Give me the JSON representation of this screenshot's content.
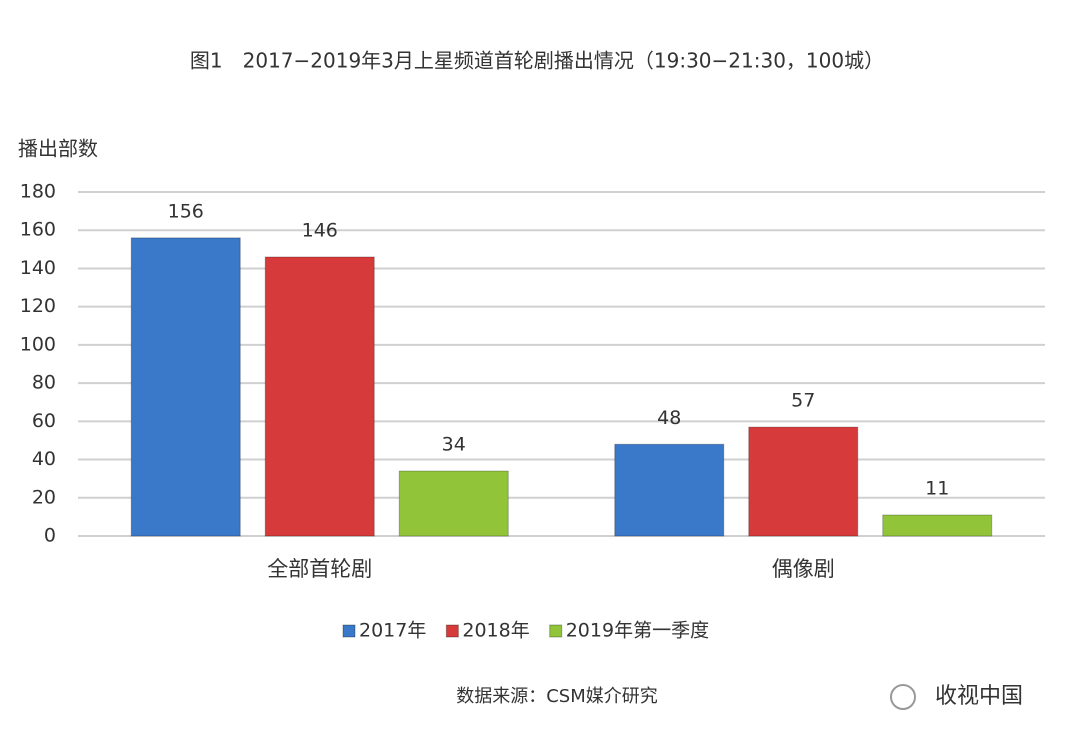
{
  "chart_data": {
    "type": "bar",
    "title": "图1　2017−2019年3月上星频道首轮剧播出情况（19:30−21:30，100城）",
    "y_label": "播出部数",
    "categories": [
      "全部首轮剧",
      "偶像剧"
    ],
    "series": [
      {
        "name": "2017年",
        "color": "#3a78c9",
        "values": [
          156,
          48
        ]
      },
      {
        "name": "2018年",
        "color": "#d63a3a",
        "values": [
          146,
          57
        ]
      },
      {
        "name": "2019年第一季度",
        "color": "#92c43a",
        "values": [
          34,
          11
        ]
      }
    ],
    "ylim": [
      0,
      180
    ],
    "yticks": [
      0,
      20,
      40,
      60,
      80,
      100,
      120,
      140,
      160,
      180
    ],
    "grid": true,
    "legend": "bottom",
    "source": "数据来源：CSM媒介研究",
    "watermark": "收视中国"
  }
}
